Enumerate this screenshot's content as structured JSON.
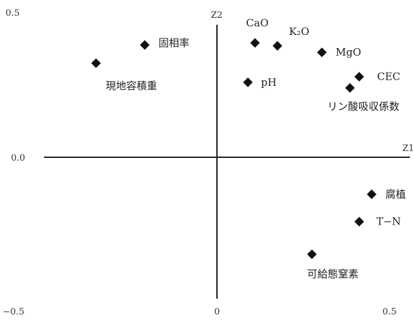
{
  "chart_data": {
    "type": "scatter",
    "title": "",
    "xlabel": "Z1",
    "ylabel": "Z2",
    "xlim": [
      -0.5,
      0.5
    ],
    "ylim": [
      -0.5,
      0.5
    ],
    "x_tick_labels": [
      "−0.5",
      "0",
      "0.5"
    ],
    "y_tick_labels": [
      "0.5",
      "0.0",
      "−0.5"
    ],
    "grid": false,
    "marker": "diamond",
    "marker_color": "#111111",
    "points": [
      {
        "label": "現地容積重",
        "x": -0.34,
        "y": 0.32
      },
      {
        "label": "固相率",
        "x": -0.203,
        "y": 0.382
      },
      {
        "label": "CaO",
        "x": 0.107,
        "y": 0.389
      },
      {
        "label": "K₂O",
        "x": 0.17,
        "y": 0.379
      },
      {
        "label": "MgO",
        "x": 0.295,
        "y": 0.357
      },
      {
        "label": "pH",
        "x": 0.087,
        "y": 0.255
      },
      {
        "label": "CEC",
        "x": 0.4,
        "y": 0.274
      },
      {
        "label": "リン酸吸収係数",
        "x": 0.374,
        "y": 0.236
      },
      {
        "label": "腐植",
        "x": 0.435,
        "y": -0.126
      },
      {
        "label": "T−N",
        "x": 0.4,
        "y": -0.219
      },
      {
        "label": "可給態窒素",
        "x": 0.267,
        "y": -0.33
      }
    ]
  }
}
